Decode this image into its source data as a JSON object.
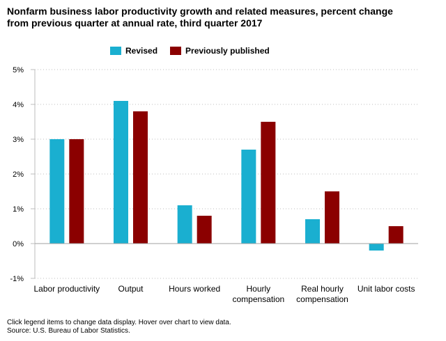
{
  "title_line1": "Nonfarm business labor productivity growth and related measures, percent change",
  "title_line2": "from previous quarter at annual rate, third quarter 2017",
  "footer": {
    "note": "Click legend items to change data display. Hover over chart to view data.",
    "source": "Source: U.S. Bureau of Labor Statistics."
  },
  "colors": {
    "revised": "#1AAFD0",
    "previously_published": "#8B0000"
  },
  "chart_data": {
    "type": "bar",
    "title": "Nonfarm business labor productivity growth and related measures, percent change from previous quarter at annual rate, third quarter 2017",
    "xlabel": "",
    "ylabel": "",
    "categories": [
      [
        "Labor productivity"
      ],
      [
        "Output"
      ],
      [
        "Hours worked"
      ],
      [
        "Hourly",
        "compensation"
      ],
      [
        "Real hourly",
        "compensation"
      ],
      [
        "Unit labor costs"
      ]
    ],
    "series": [
      {
        "name": "Revised",
        "values": [
          3.0,
          4.1,
          1.1,
          2.7,
          0.7,
          -0.2
        ]
      },
      {
        "name": "Previously published",
        "values": [
          3.0,
          3.8,
          0.8,
          3.5,
          1.5,
          0.5
        ]
      }
    ],
    "ylim": [
      -1,
      5
    ],
    "yticks": [
      "5%",
      "4%",
      "3%",
      "2%",
      "1%",
      "0%",
      "-1%"
    ],
    "ytick_values": [
      5,
      4,
      3,
      2,
      1,
      0,
      -1
    ],
    "grid": true,
    "legend_position": "top-center"
  }
}
